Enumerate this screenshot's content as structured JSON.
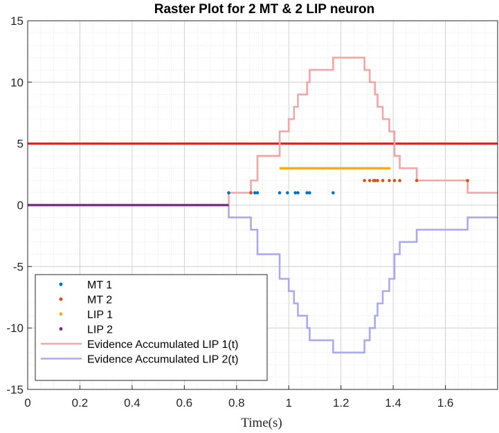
{
  "chart_data": {
    "type": "line",
    "title": "Raster Plot for 2 MT & 2 LIP neuron",
    "xlabel": "Time(s)",
    "ylabel": "",
    "xlim": [
      0,
      1.8
    ],
    "ylim": [
      -15,
      15
    ],
    "xticks": [
      "0",
      "0.2",
      "0.4",
      "0.6",
      "0.8",
      "1",
      "1.2",
      "1.4",
      "1.6"
    ],
    "yticks": [
      "-15",
      "-10",
      "-5",
      "0",
      "5",
      "10",
      "15"
    ],
    "grid": true,
    "minor_grid": true,
    "legend_position": "bottom-left",
    "threshold": {
      "y": 5,
      "color": "#e41a1c"
    },
    "series": [
      {
        "name": "MT 1",
        "kind": "scatter",
        "color": "#0072BD",
        "x": [
          0.77,
          0.855,
          0.87,
          0.88,
          0.965,
          0.995,
          1.025,
          1.035,
          1.07,
          1.08,
          1.17
        ],
        "y": [
          1,
          1,
          1,
          1,
          1,
          1,
          1,
          1,
          1,
          1,
          1
        ]
      },
      {
        "name": "MT 2",
        "kind": "scatter",
        "color": "#D95319",
        "x": [
          0.855,
          1.29,
          1.31,
          1.325,
          1.33,
          1.34,
          1.36,
          1.385,
          1.405,
          1.425,
          1.49,
          1.685
        ],
        "y": [
          1,
          2,
          2,
          2,
          2,
          2,
          2,
          2,
          2,
          2,
          2,
          2
        ]
      },
      {
        "name": "LIP 1",
        "kind": "scatter",
        "color": "#EDB120",
        "x_start": 0.965,
        "x_end": 1.39,
        "y_value": 3
      },
      {
        "name": "LIP 2",
        "kind": "scatter",
        "color": "#7E2F8E",
        "x_start": 0,
        "x_end": 0.77,
        "y_value": 0
      },
      {
        "name": "Evidence Accumulated LIP 1(t)",
        "kind": "line",
        "color": "#f4a6a6",
        "x": [
          0,
          0.77,
          0.77,
          0.855,
          0.855,
          0.88,
          0.88,
          0.965,
          0.965,
          1.0,
          1.0,
          1.02,
          1.02,
          1.035,
          1.035,
          1.07,
          1.07,
          1.08,
          1.08,
          1.17,
          1.17,
          1.29,
          1.29,
          1.31,
          1.31,
          1.33,
          1.33,
          1.34,
          1.34,
          1.36,
          1.36,
          1.385,
          1.385,
          1.405,
          1.405,
          1.425,
          1.425,
          1.49,
          1.49,
          1.685,
          1.685,
          1.8
        ],
        "y": [
          0,
          0,
          1,
          1,
          2,
          2,
          4,
          4,
          6,
          6,
          7,
          7,
          8,
          8,
          9,
          9,
          10,
          10,
          11,
          11,
          12,
          12,
          11,
          11,
          10,
          10,
          9,
          9,
          8,
          8,
          7,
          7,
          6,
          6,
          4,
          4,
          3,
          3,
          2,
          2,
          1,
          1
        ]
      },
      {
        "name": "Evidence Accumulated LIP 2(t)",
        "kind": "line",
        "color": "#a9a9f5",
        "x": [
          0,
          0.77,
          0.77,
          0.855,
          0.855,
          0.88,
          0.88,
          0.965,
          0.965,
          1.0,
          1.0,
          1.02,
          1.02,
          1.035,
          1.035,
          1.07,
          1.07,
          1.08,
          1.08,
          1.17,
          1.17,
          1.29,
          1.29,
          1.31,
          1.31,
          1.33,
          1.33,
          1.34,
          1.34,
          1.36,
          1.36,
          1.385,
          1.385,
          1.405,
          1.405,
          1.425,
          1.425,
          1.49,
          1.49,
          1.685,
          1.685,
          1.8
        ],
        "y": [
          0,
          0,
          -1,
          -1,
          -2,
          -2,
          -4,
          -4,
          -6,
          -6,
          -7,
          -7,
          -8,
          -8,
          -9,
          -9,
          -10,
          -10,
          -11,
          -11,
          -12,
          -12,
          -11,
          -11,
          -10,
          -10,
          -9,
          -9,
          -8,
          -8,
          -7,
          -7,
          -6,
          -6,
          -4,
          -4,
          -3,
          -3,
          -2,
          -2,
          -1,
          -1
        ]
      }
    ]
  }
}
